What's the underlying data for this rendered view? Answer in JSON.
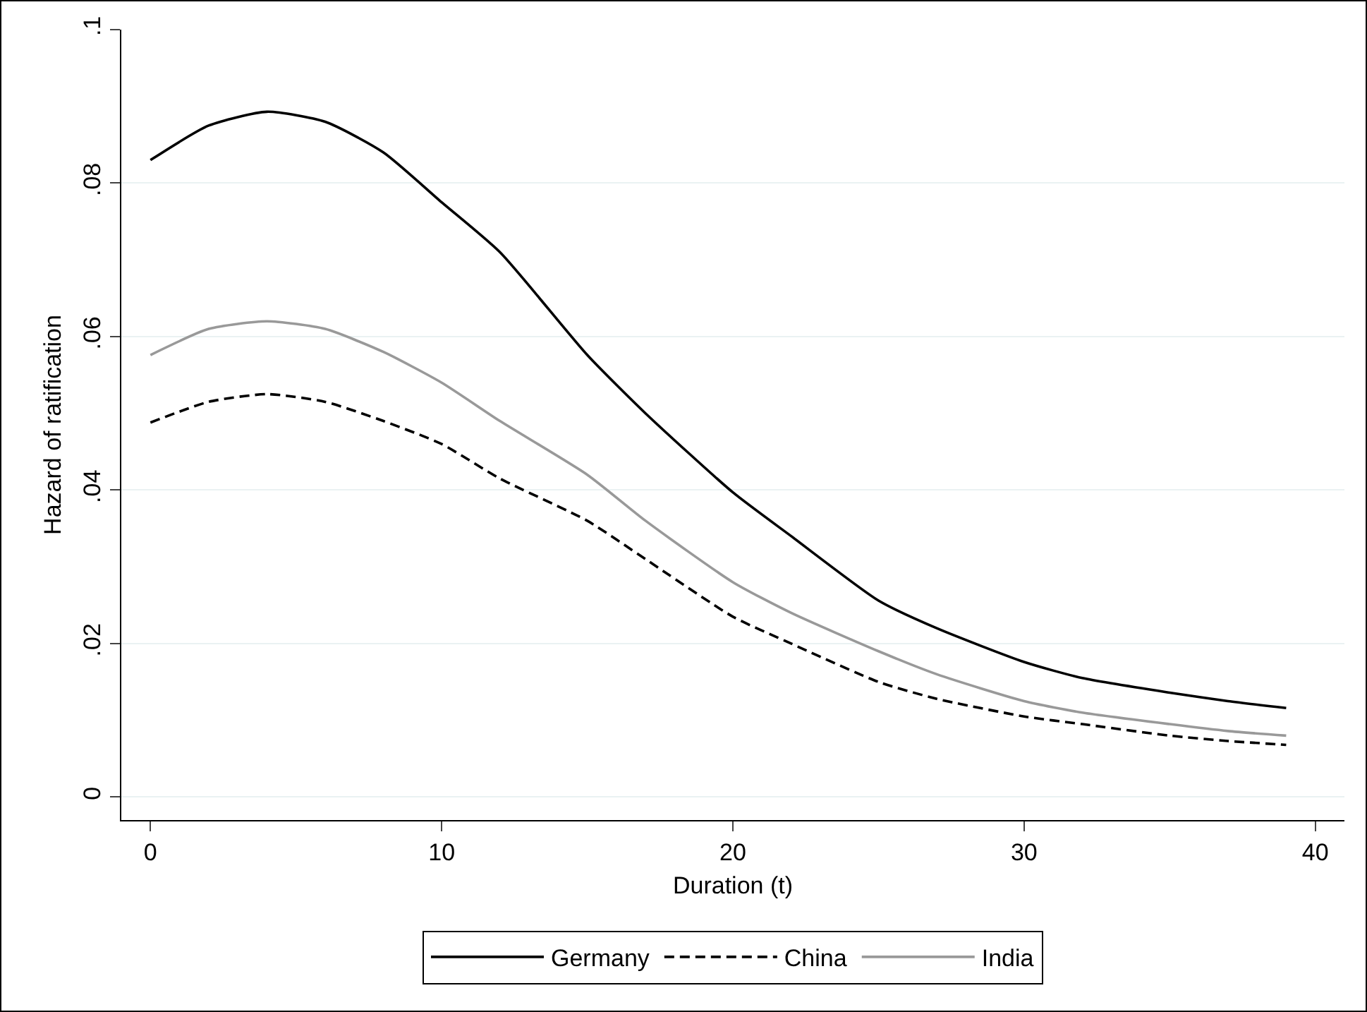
{
  "chart_data": {
    "type": "line",
    "xlabel": "Duration (t)",
    "ylabel": "Hazard of ratification",
    "xlim": [
      -1,
      41
    ],
    "xticks": [
      0,
      10,
      20,
      30,
      40
    ],
    "ylim": [
      -0.003,
      0.1
    ],
    "yticks": [
      0,
      {
        "value": 0.02,
        "label": ".02"
      },
      {
        "value": 0.04,
        "label": ".04"
      },
      {
        "value": 0.06,
        "label": ".06"
      },
      {
        "value": 0.08,
        "label": ".08"
      },
      {
        "value": 0.1,
        "label": ".1"
      }
    ],
    "grid": "y",
    "legend": "bottom",
    "marker": "none",
    "x": [
      0,
      2,
      4,
      6,
      8,
      10,
      12,
      15,
      17,
      20,
      22,
      25,
      27,
      30,
      32,
      35,
      37,
      39
    ],
    "series": [
      {
        "name": "Germany",
        "color": "#000000",
        "line_style": "solid",
        "values": [
          0.083,
          0.0875,
          0.0893,
          0.088,
          0.084,
          0.0775,
          0.071,
          0.0576,
          0.05,
          0.0397,
          0.034,
          0.0256,
          0.022,
          0.0176,
          0.0155,
          0.0136,
          0.0125,
          0.0116
        ]
      },
      {
        "name": "China",
        "color": "#000000",
        "line_style": "dashed",
        "values": [
          0.0488,
          0.0515,
          0.0525,
          0.0515,
          0.049,
          0.046,
          0.0415,
          0.036,
          0.031,
          0.0235,
          0.02,
          0.015,
          0.0128,
          0.0105,
          0.0095,
          0.008,
          0.0073,
          0.0068
        ]
      },
      {
        "name": "India",
        "color": "#999999",
        "line_style": "solid",
        "values": [
          0.0576,
          0.061,
          0.062,
          0.061,
          0.058,
          0.054,
          0.049,
          0.042,
          0.036,
          0.028,
          0.024,
          0.019,
          0.016,
          0.0125,
          0.011,
          0.0095,
          0.0086,
          0.008
        ]
      }
    ]
  }
}
